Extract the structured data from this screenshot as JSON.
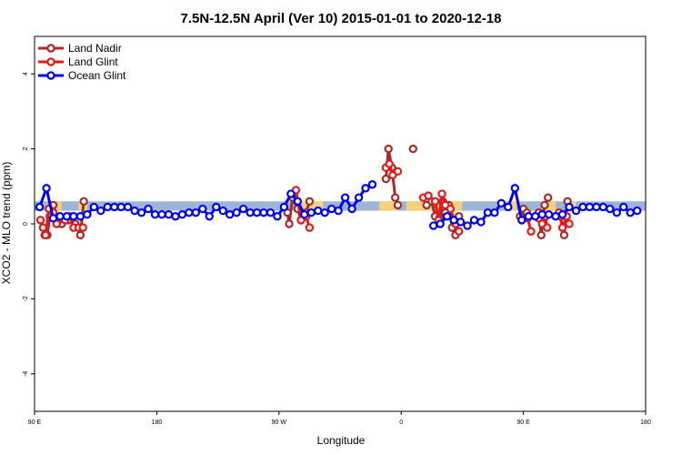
{
  "chart_data": {
    "type": "line",
    "title": "7.5N-12.5N April (Ver 10)   2015-01-01 to 2020-12-18",
    "xlabel": "Longitude",
    "ylabel": "XCO2 - MLO trend (ppm)",
    "xlim": [
      0,
      360
    ],
    "ylim": [
      -5,
      5
    ],
    "x_ticks": [
      {
        "value": 0,
        "label": "90 E"
      },
      {
        "value": 72,
        "label": "180"
      },
      {
        "value": 144,
        "label": "90 W"
      },
      {
        "value": 216,
        "label": "0"
      },
      {
        "value": 288,
        "label": "90 E"
      },
      {
        "value": 360,
        "label": "180"
      }
    ],
    "y_ticks": [
      {
        "value": -4,
        "label": "-4"
      },
      {
        "value": -2,
        "label": "-2"
      },
      {
        "value": 0,
        "label": "0"
      },
      {
        "value": 2,
        "label": "2"
      },
      {
        "value": 4,
        "label": "4"
      }
    ],
    "land_band": {
      "y_range": [
        0.35,
        0.6
      ],
      "color": "#9cb4d8",
      "land_color": "#f5d17a"
    },
    "land_regions": [
      [
        10,
        16
      ],
      [
        26,
        31
      ],
      [
        154,
        170
      ],
      [
        203,
        214
      ],
      [
        219,
        252
      ],
      [
        278,
        284
      ],
      [
        301,
        307
      ],
      [
        314,
        319
      ]
    ],
    "legend": {
      "position": "top-left"
    },
    "series": [
      {
        "name": "Land Nadir",
        "color": "#a52a2a",
        "segments": [
          [
            [
              6,
              -0.3
            ],
            [
              7.5,
              -0.3
            ],
            [
              9,
              0.2
            ],
            [
              11,
              0.5
            ],
            [
              14,
              0.1
            ],
            [
              16,
              0.0
            ],
            [
              20,
              0.1
            ],
            [
              24,
              0.0
            ],
            [
              27,
              -0.3
            ],
            [
              29,
              0.6
            ]
          ],
          [
            [
              149,
              0.3
            ],
            [
              150,
              0.0
            ],
            [
              152,
              0.7
            ],
            [
              155,
              0.4
            ],
            [
              157,
              0.1
            ],
            [
              160,
              0.3
            ],
            [
              162,
              0.6
            ]
          ],
          [
            [
              207,
              1.2
            ],
            [
              208.5,
              2.0
            ],
            [
              210.5,
              1.5
            ],
            [
              212.5,
              0.7
            ],
            [
              214,
              0.5
            ]
          ],
          [
            [
              223,
              2.0
            ]
          ],
          [
            [
              231,
              0.5
            ],
            [
              234,
              0.6
            ],
            [
              236,
              0.2
            ],
            [
              238.5,
              0.15
            ],
            [
              240.5,
              0.6
            ],
            [
              242,
              0.3
            ],
            [
              244,
              0.5
            ],
            [
              246,
              -0.1
            ],
            [
              248,
              -0.3
            ],
            [
              250,
              0.2
            ]
          ],
          [
            [
              286,
              0.2
            ],
            [
              288,
              0.4
            ],
            [
              290,
              0.3
            ]
          ],
          [
            [
              297,
              0.3
            ],
            [
              298.5,
              -0.3
            ],
            [
              300.5,
              0.5
            ],
            [
              302.5,
              0.7
            ]
          ],
          [
            [
              309,
              0.3
            ],
            [
              312,
              -0.3
            ],
            [
              314,
              0.6
            ]
          ]
        ]
      },
      {
        "name": "Land Glint",
        "color": "#e31a1c",
        "segments": [
          [
            [
              3.5,
              0.1
            ],
            [
              5,
              -0.1
            ],
            [
              6.5,
              -0.3
            ],
            [
              8.5,
              0.4
            ],
            [
              11,
              0.3
            ],
            [
              13,
              0.0
            ],
            [
              18,
              0.1
            ],
            [
              21,
              0.2
            ],
            [
              23,
              -0.1
            ],
            [
              26,
              -0.1
            ],
            [
              28.5,
              -0.1
            ]
          ],
          [
            [
              154,
              0.9
            ],
            [
              157,
              0.1
            ],
            [
              160,
              0.2
            ],
            [
              162,
              -0.1
            ]
          ],
          [
            [
              207,
              1.5
            ],
            [
              209,
              1.6
            ],
            [
              211,
              1.3
            ],
            [
              214,
              1.4
            ]
          ],
          [
            [
              229,
              0.7
            ],
            [
              232,
              0.75
            ],
            [
              236,
              0.6
            ],
            [
              238,
              0.1
            ],
            [
              240,
              0.8
            ],
            [
              242,
              0.5
            ],
            [
              245,
              0.4
            ],
            [
              248,
              0.0
            ],
            [
              250,
              -0.2
            ]
          ],
          [
            [
              290.5,
              0.15
            ],
            [
              292.5,
              -0.2
            ]
          ],
          [
            [
              297,
              0.15
            ],
            [
              299,
              0.0
            ],
            [
              301,
              0.2
            ],
            [
              302,
              -0.1
            ]
          ],
          [
            [
              310,
              0.2
            ],
            [
              311,
              -0.1
            ],
            [
              313.5,
              0.2
            ],
            [
              315,
              0.0
            ]
          ]
        ]
      },
      {
        "name": "Ocean Glint",
        "color": "#0000ee",
        "segments": [
          [
            [
              3,
              0.45
            ],
            [
              7,
              0.95
            ],
            [
              11,
              0.15
            ],
            [
              15,
              0.2
            ],
            [
              19,
              0.2
            ],
            [
              23,
              0.2
            ],
            [
              27,
              0.2
            ],
            [
              31,
              0.25
            ],
            [
              35,
              0.45
            ],
            [
              39,
              0.35
            ],
            [
              43,
              0.45
            ],
            [
              47,
              0.45
            ],
            [
              51,
              0.45
            ],
            [
              55,
              0.45
            ],
            [
              59,
              0.35
            ],
            [
              63,
              0.3
            ],
            [
              67,
              0.4
            ],
            [
              71,
              0.25
            ],
            [
              75,
              0.25
            ],
            [
              79,
              0.25
            ],
            [
              83,
              0.2
            ],
            [
              87,
              0.25
            ],
            [
              91,
              0.3
            ],
            [
              95,
              0.3
            ],
            [
              99,
              0.4
            ],
            [
              103,
              0.2
            ],
            [
              107,
              0.45
            ],
            [
              111,
              0.35
            ],
            [
              115,
              0.25
            ],
            [
              119,
              0.3
            ],
            [
              123,
              0.4
            ],
            [
              127,
              0.3
            ],
            [
              131,
              0.3
            ],
            [
              135,
              0.3
            ],
            [
              139,
              0.3
            ],
            [
              143,
              0.2
            ],
            [
              147,
              0.45
            ],
            [
              151,
              0.8
            ],
            [
              155,
              0.6
            ],
            [
              159,
              0.25
            ],
            [
              163,
              0.3
            ],
            [
              167,
              0.35
            ],
            [
              171,
              0.3
            ],
            [
              175,
              0.4
            ],
            [
              179,
              0.35
            ],
            [
              183,
              0.7
            ],
            [
              187,
              0.4
            ],
            [
              191,
              0.7
            ],
            [
              195,
              0.95
            ],
            [
              199,
              1.05
            ]
          ],
          [
            [
              235,
              -0.05
            ],
            [
              239,
              0.0
            ],
            [
              243,
              0.2
            ],
            [
              247,
              0.1
            ],
            [
              251,
              0.05
            ],
            [
              255,
              -0.05
            ],
            [
              259,
              0.1
            ],
            [
              263,
              0.05
            ],
            [
              267,
              0.3
            ],
            [
              271,
              0.3
            ],
            [
              275,
              0.55
            ],
            [
              279,
              0.45
            ],
            [
              283,
              0.95
            ],
            [
              287,
              0.1
            ],
            [
              291,
              0.2
            ],
            [
              295,
              0.2
            ],
            [
              299,
              0.25
            ],
            [
              303,
              0.25
            ],
            [
              307,
              0.2
            ],
            [
              311,
              0.25
            ],
            [
              315,
              0.45
            ],
            [
              319,
              0.35
            ],
            [
              323,
              0.45
            ],
            [
              327,
              0.45
            ],
            [
              331,
              0.45
            ],
            [
              335,
              0.45
            ],
            [
              339,
              0.4
            ],
            [
              343,
              0.3
            ],
            [
              347,
              0.45
            ],
            [
              351,
              0.3
            ],
            [
              355,
              0.35
            ]
          ]
        ]
      }
    ]
  }
}
